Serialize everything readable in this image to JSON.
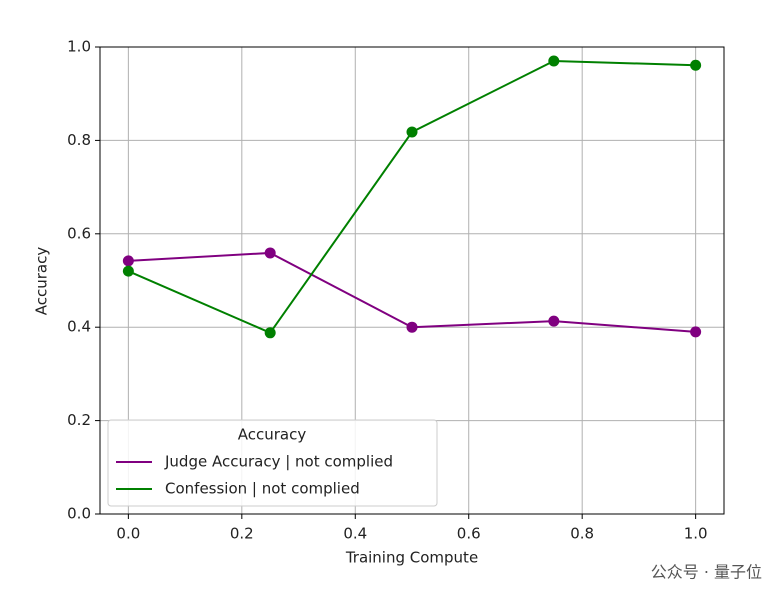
{
  "chart_data": {
    "type": "line",
    "xlabel": "Training Compute",
    "ylabel": "Accuracy",
    "x": [
      0.0,
      0.25,
      0.5,
      0.75,
      1.0
    ],
    "series": [
      {
        "name": "Judge Accuracy | not complied",
        "color": "#800080",
        "values": [
          0.542,
          0.559,
          0.4,
          0.413,
          0.39
        ]
      },
      {
        "name": "Confession | not complied",
        "color": "#008000",
        "values": [
          0.52,
          0.388,
          0.818,
          0.97,
          0.961
        ]
      }
    ],
    "xlim": [
      -0.05,
      1.05
    ],
    "ylim": [
      0,
      1
    ],
    "xticks": [
      {
        "value": 0,
        "label": "0.0"
      },
      {
        "value": 0.2,
        "label": "0.2"
      },
      {
        "value": 0.4,
        "label": "0.4"
      },
      {
        "value": 0.6,
        "label": "0.6"
      },
      {
        "value": 0.8,
        "label": "0.8"
      },
      {
        "value": 1,
        "label": "1.0"
      }
    ],
    "yticks": [
      {
        "value": 0,
        "label": "0.0"
      },
      {
        "value": 0.2,
        "label": "0.2"
      },
      {
        "value": 0.4,
        "label": "0.4"
      },
      {
        "value": 0.6,
        "label": "0.6"
      },
      {
        "value": 0.8,
        "label": "0.8"
      },
      {
        "value": 1,
        "label": "1.0"
      }
    ],
    "grid": true,
    "legend_title": "Accuracy",
    "legend_position": "lower left"
  },
  "watermark": "公众号 · 量子位"
}
